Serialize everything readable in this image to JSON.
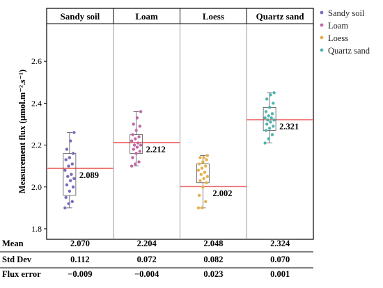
{
  "chart_data": {
    "type": "scatter",
    "ylabel": "Measurement flux (μmol.m⁻².s⁻¹)",
    "ylim": [
      1.75,
      2.78
    ],
    "yticks": [
      "1.8",
      "2.0",
      "2.2",
      "2.4",
      "2.6"
    ],
    "panels": [
      {
        "title": "Sandy soil",
        "color": "#7b6bbd",
        "reference_line": 2.089,
        "reference_label": "2.089",
        "box": {
          "q1": 1.96,
          "q3": 2.16,
          "min": 1.9,
          "max": 2.26
        },
        "points": [
          1.9,
          1.92,
          1.93,
          1.95,
          1.98,
          2.0,
          2.01,
          2.03,
          2.04,
          2.05,
          2.06,
          2.08,
          2.1,
          2.11,
          2.13,
          2.14,
          2.16,
          2.18,
          2.22,
          2.26
        ]
      },
      {
        "title": "Loam",
        "color": "#c06aa6",
        "reference_line": 2.212,
        "reference_label": "2.212",
        "box": {
          "q1": 2.16,
          "q3": 2.25,
          "min": 2.1,
          "max": 2.36
        },
        "points": [
          2.1,
          2.11,
          2.12,
          2.14,
          2.16,
          2.17,
          2.18,
          2.19,
          2.2,
          2.2,
          2.21,
          2.22,
          2.23,
          2.24,
          2.25,
          2.27,
          2.29,
          2.3,
          2.33,
          2.36
        ]
      },
      {
        "title": "Loess",
        "color": "#e3b04d",
        "reference_line": 2.002,
        "reference_label": "2.002",
        "box": {
          "q1": 2.02,
          "q3": 2.11,
          "min": 1.9,
          "max": 2.15
        },
        "points": [
          1.9,
          1.9,
          1.93,
          1.96,
          2.0,
          2.02,
          2.03,
          2.04,
          2.05,
          2.06,
          2.07,
          2.08,
          2.09,
          2.1,
          2.11,
          2.12,
          2.13,
          2.14,
          2.14,
          2.15
        ]
      },
      {
        "title": "Quartz sand",
        "color": "#4db3ac",
        "reference_line": 2.321,
        "reference_label": "2.321",
        "box": {
          "q1": 2.27,
          "q3": 2.38,
          "min": 2.21,
          "max": 2.45
        },
        "points": [
          2.21,
          2.23,
          2.25,
          2.27,
          2.28,
          2.29,
          2.3,
          2.31,
          2.32,
          2.32,
          2.33,
          2.33,
          2.34,
          2.35,
          2.36,
          2.38,
          2.4,
          2.42,
          2.44,
          2.45
        ]
      }
    ],
    "legend": {
      "placement": "top-right",
      "items": [
        "Sandy soil",
        "Loam",
        "Loess",
        "Quartz sand"
      ]
    },
    "reference_line_color": "#f07a78",
    "stats_table": {
      "rows": [
        {
          "label": "Mean",
          "values": [
            "2.070",
            "2.204",
            "2.048",
            "2.324"
          ]
        },
        {
          "label": "Std Dev",
          "values": [
            "0.112",
            "0.072",
            "0.082",
            "0.070"
          ]
        },
        {
          "label": "Flux error",
          "values": [
            "−0.009",
            "−0.004",
            "0.023",
            "0.001"
          ]
        }
      ]
    }
  }
}
